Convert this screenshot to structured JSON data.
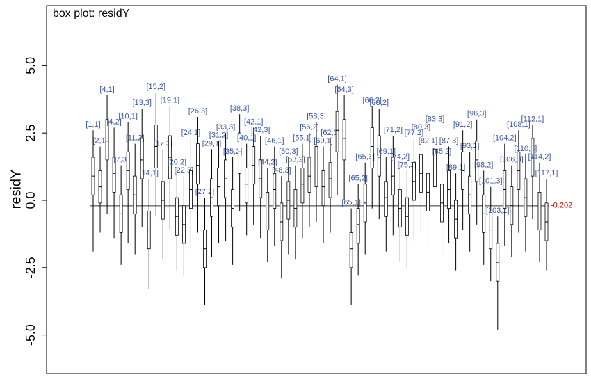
{
  "chart_data": {
    "type": "boxplot",
    "title": "box plot: residY",
    "y_label": "residY",
    "ylim": [
      -6.43,
      7.23
    ],
    "yticks": [
      {
        "value": -5,
        "label": "-5.0"
      },
      {
        "value": -2.5,
        "label": "-2.5"
      },
      {
        "value": 0,
        "label": "0.0"
      },
      {
        "value": 2.5,
        "label": "2.5"
      },
      {
        "value": 5,
        "label": "5.0"
      }
    ],
    "baseline": -0.202,
    "baseline_color": "#dd0000",
    "label_color": "#3a55a8",
    "color": "#000000",
    "labels": [
      "[1,1]",
      "[2,1]",
      "[4,1]",
      "[4,2]",
      "[7,3]",
      "[10,1]",
      "[11,2]",
      "[13,3]",
      "[14,1]",
      "[15,2]",
      "[17,3]",
      "[19,1]",
      "[20,2]",
      "[22,3]",
      "[24,1]",
      "[26,3]",
      "[27,2]",
      "[29,1]",
      "[31,2]",
      "[33,3]",
      "[35,2]",
      "[38,3]",
      "[40,1]",
      "[42,1]",
      "[42,3]",
      "[44,2]",
      "[46,1]",
      "[48,3]",
      "[50,3]",
      "[53,2]",
      "[55,1]",
      "[56,2]",
      "[58,3]",
      "[60,1]",
      "[62,3]",
      "[64,1]",
      "[64,3]",
      "[65,1]",
      "[65,2]",
      "[65,3]",
      "[66,2]",
      "[68,2]",
      "[69,1]",
      "[71,2]",
      "[74,2]",
      "[75,3]",
      "[77,2]",
      "[80,3]",
      "[82,1]",
      "[83,3]",
      "[85,2]",
      "[87,3]",
      "[89,1]",
      "[91,2]",
      "[93,1]",
      "[96,3]",
      "[98,2]",
      "[101,3]",
      "[103,1]",
      "[104,2]",
      "[106,3]",
      "[108,1]",
      "[110,3]",
      "[112,1]",
      "[114,2]",
      "[117,1]"
    ],
    "stats": [
      [
        -1.9,
        0.2,
        0.9,
        1.6,
        2.6
      ],
      [
        -1.2,
        -0.1,
        0.5,
        1.1,
        2.0
      ],
      [
        -0.5,
        1.5,
        2.2,
        3.0,
        3.9
      ],
      [
        -1.4,
        0.3,
        1.0,
        1.6,
        2.7
      ],
      [
        -2.4,
        -1.2,
        -0.5,
        0.2,
        1.3
      ],
      [
        -1.6,
        0.4,
        1.1,
        1.8,
        2.9
      ],
      [
        -2.0,
        -0.5,
        0.2,
        0.9,
        2.1
      ],
      [
        -1.0,
        0.8,
        1.5,
        2.3,
        3.4
      ],
      [
        -3.3,
        -1.8,
        -1.1,
        -0.4,
        0.8
      ],
      [
        -0.6,
        1.2,
        2.0,
        2.8,
        4.0
      ],
      [
        -2.2,
        -0.7,
        0.0,
        0.7,
        1.9
      ],
      [
        -1.1,
        0.8,
        1.6,
        2.4,
        3.5
      ],
      [
        -2.6,
        -1.3,
        -0.6,
        0.1,
        1.2
      ],
      [
        -2.8,
        -1.6,
        -0.9,
        -0.2,
        0.9
      ],
      [
        -1.8,
        -0.3,
        0.4,
        1.1,
        2.3
      ],
      [
        -1.2,
        0.6,
        1.3,
        2.1,
        3.1
      ],
      [
        -3.9,
        -2.5,
        -1.8,
        -1.1,
        0.1
      ],
      [
        -2.1,
        -0.6,
        0.1,
        0.8,
        1.9
      ],
      [
        -1.6,
        -0.2,
        0.5,
        1.2,
        2.2
      ],
      [
        -1.5,
        0.1,
        0.8,
        1.5,
        2.5
      ],
      [
        -2.4,
        -1.0,
        -0.3,
        0.4,
        1.6
      ],
      [
        -0.4,
        1.0,
        1.8,
        2.5,
        3.2
      ],
      [
        -1.3,
        -0.1,
        0.6,
        1.2,
        2.1
      ],
      [
        -0.9,
        0.6,
        1.3,
        2.0,
        2.7
      ],
      [
        -1.4,
        0.1,
        0.8,
        1.5,
        2.4
      ],
      [
        -2.3,
        -1.1,
        -0.4,
        0.3,
        1.2
      ],
      [
        -1.7,
        -0.3,
        0.4,
        1.0,
        2.0
      ],
      [
        -2.9,
        -1.5,
        -0.8,
        -0.1,
        0.9
      ],
      [
        -2.0,
        -0.7,
        0.0,
        0.7,
        1.6
      ],
      [
        -2.2,
        -1.0,
        -0.3,
        0.4,
        1.3
      ],
      [
        -1.4,
        -0.1,
        0.6,
        1.2,
        2.1
      ],
      [
        -1.0,
        0.3,
        0.9,
        1.6,
        2.5
      ],
      [
        -0.8,
        0.5,
        1.2,
        2.0,
        2.9
      ],
      [
        -1.6,
        -0.2,
        0.5,
        1.1,
        2.0
      ],
      [
        -1.2,
        0.1,
        0.8,
        1.4,
        2.3
      ],
      [
        0.2,
        1.8,
        2.6,
        3.3,
        4.3
      ],
      [
        0.0,
        1.5,
        2.3,
        3.0,
        3.9
      ],
      [
        -3.9,
        -2.5,
        -1.8,
        -1.2,
        -0.3
      ],
      [
        -2.8,
        -1.6,
        -0.9,
        -0.3,
        0.6
      ],
      [
        -2.0,
        -0.8,
        -0.1,
        0.6,
        1.4
      ],
      [
        -0.3,
        1.2,
        2.0,
        2.7,
        3.5
      ],
      [
        -0.7,
        0.9,
        1.6,
        2.4,
        3.4
      ],
      [
        -1.9,
        -0.6,
        0.1,
        0.7,
        1.6
      ],
      [
        -1.3,
        0.2,
        0.9,
        1.6,
        2.4
      ],
      [
        -2.3,
        -1.0,
        -0.3,
        0.4,
        1.4
      ],
      [
        -2.5,
        -1.3,
        -0.6,
        0.1,
        1.1
      ],
      [
        -1.5,
        0.0,
        0.7,
        1.4,
        2.3
      ],
      [
        -1.2,
        0.3,
        1.0,
        1.7,
        2.5
      ],
      [
        -1.8,
        -0.4,
        0.3,
        1.0,
        2.0
      ],
      [
        -1.0,
        0.5,
        1.2,
        1.9,
        2.8
      ],
      [
        -2.1,
        -0.8,
        -0.1,
        0.6,
        1.6
      ],
      [
        -1.6,
        -0.3,
        0.4,
        1.1,
        2.0
      ],
      [
        -2.6,
        -1.4,
        -0.7,
        0.0,
        1.0
      ],
      [
        -1.1,
        0.4,
        1.1,
        1.8,
        2.6
      ],
      [
        -1.9,
        -0.5,
        0.2,
        0.9,
        1.8
      ],
      [
        -0.9,
        0.7,
        1.5,
        2.2,
        3.0
      ],
      [
        -2.4,
        -1.2,
        -0.5,
        0.2,
        1.1
      ],
      [
        -3.0,
        -1.8,
        -1.1,
        -0.4,
        0.5
      ],
      [
        -4.8,
        -3.0,
        -2.3,
        -1.6,
        -0.6
      ],
      [
        -1.7,
        -0.3,
        0.4,
        1.1,
        2.1
      ],
      [
        -2.1,
        -0.9,
        -0.2,
        0.5,
        1.3
      ],
      [
        -1.2,
        0.4,
        1.1,
        1.8,
        2.6
      ],
      [
        -1.9,
        -0.6,
        0.1,
        0.8,
        1.7
      ],
      [
        -0.7,
        0.9,
        1.6,
        2.3,
        2.8
      ],
      [
        -2.3,
        -1.1,
        -0.4,
        0.3,
        1.4
      ],
      [
        -2.6,
        -1.5,
        -0.8,
        -0.1,
        0.8
      ]
    ]
  }
}
